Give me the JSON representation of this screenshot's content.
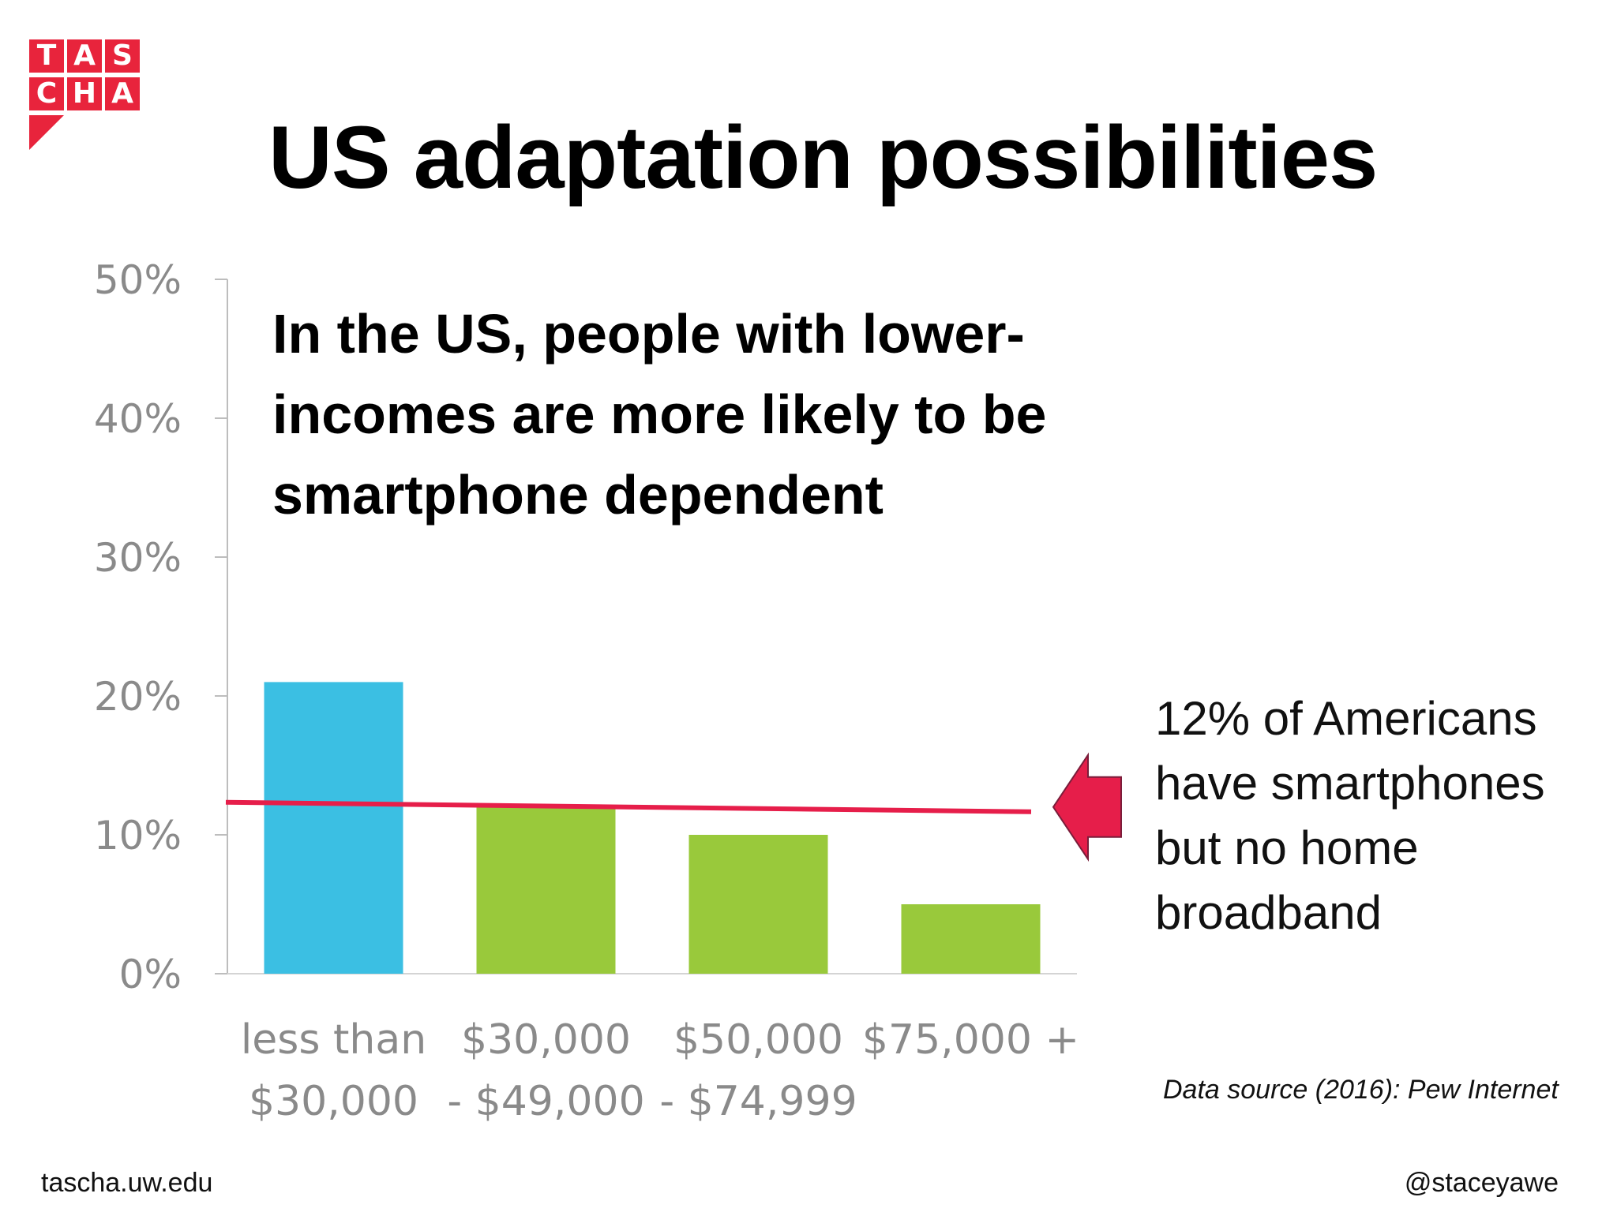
{
  "logo": {
    "letters": [
      "T",
      "A",
      "S",
      "C",
      "H",
      "A"
    ],
    "color": "#e8243c"
  },
  "title": "US adaptation possibilities",
  "headline": "In the US, people with lower-incomes are more likely to be smartphone dependent",
  "callout": "12% of Americans have smartphones but no home broadband",
  "source": "Data source (2016): Pew Internet",
  "footer": {
    "left": "tascha.uw.edu",
    "right": "@staceyawe"
  },
  "colors": {
    "first_bar": "#3bbfe3",
    "other_bars": "#99c93b",
    "reference_line": "#e61e4a",
    "arrow": "#e61e4a",
    "arrow_outline": "#7a1d3a"
  },
  "chart_data": {
    "type": "bar",
    "categories": [
      [
        "less than",
        "$30,000"
      ],
      [
        "$30,000",
        "- $49,000"
      ],
      [
        "$50,000",
        "- $74,999"
      ],
      [
        "$75,000 +",
        ""
      ]
    ],
    "values": [
      21,
      12,
      10,
      5
    ],
    "y_ticks": [
      "0%",
      "10%",
      "20%",
      "30%",
      "40%",
      "50%"
    ],
    "ylim": [
      0,
      50
    ],
    "reference_line": {
      "value": 12
    }
  }
}
